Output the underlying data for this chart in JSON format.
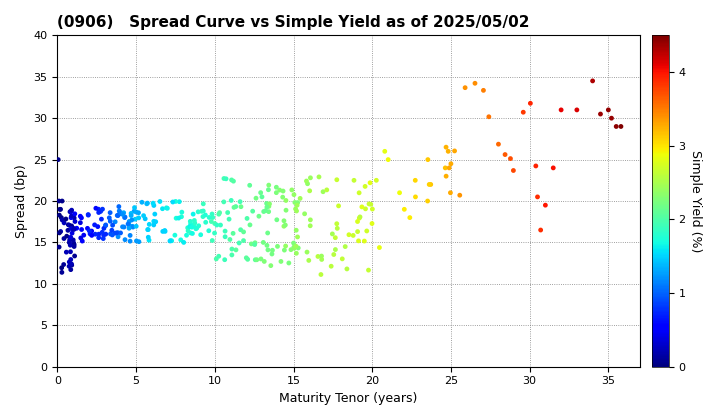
{
  "title": "(0906)   Spread Curve vs Simple Yield as of 2025/05/02",
  "xlabel": "Maturity Tenor (years)",
  "ylabel": "Spread (bp)",
  "colorbar_label": "Simple Yield (%)",
  "xlim": [
    0,
    37
  ],
  "ylim": [
    0,
    40
  ],
  "xticks": [
    0,
    5,
    10,
    15,
    20,
    25,
    30,
    35
  ],
  "yticks": [
    0,
    5,
    10,
    15,
    20,
    25,
    30,
    35,
    40
  ],
  "colorbar_ticks": [
    0,
    1,
    2,
    3,
    4
  ],
  "colormap": "jet",
  "vmin": 0.0,
  "vmax": 4.5,
  "marker_size": 12,
  "title_fontsize": 11,
  "label_fontsize": 9,
  "tick_fontsize": 8
}
